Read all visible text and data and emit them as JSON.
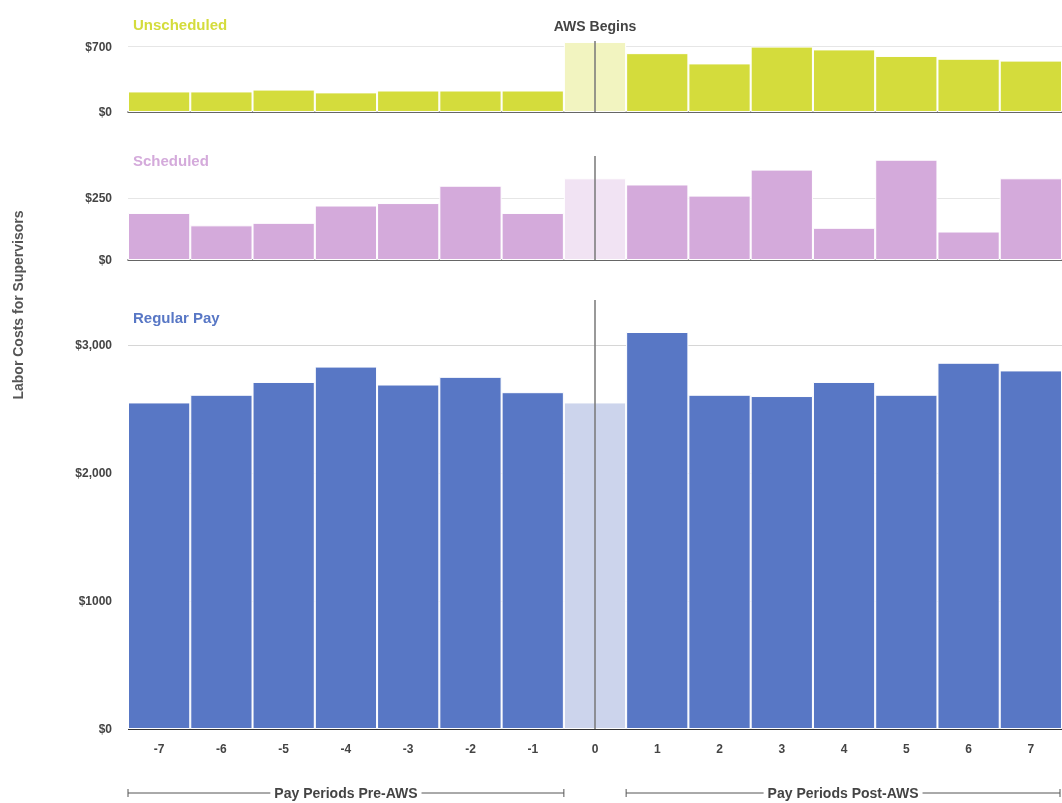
{
  "chart_data": [
    {
      "type": "bar",
      "title": "Unscheduled",
      "categories": [
        "-7",
        "-6",
        "-5",
        "-4",
        "-3",
        "-2",
        "-1",
        "0",
        "1",
        "2",
        "3",
        "4",
        "5",
        "6",
        "7"
      ],
      "values": [
        220,
        220,
        240,
        210,
        230,
        230,
        230,
        750,
        630,
        520,
        700,
        670,
        600,
        570,
        550
      ],
      "colors": [
        "#d4dc3c",
        "#d4dc3c",
        "#d4dc3c",
        "#d4dc3c",
        "#d4dc3c",
        "#d4dc3c",
        "#d4dc3c",
        "#f2f4c0",
        "#d4dc3c",
        "#d4dc3c",
        "#d4dc3c",
        "#d4dc3c",
        "#d4dc3c",
        "#d4dc3c",
        "#d4dc3c"
      ],
      "ylim": [
        0,
        760
      ],
      "yticks": [
        {
          "value": 0,
          "label": "$0"
        },
        {
          "value": 700,
          "label": "$700"
        }
      ],
      "tick_labels": "y",
      "ref_lines": [
        {
          "axis": "y",
          "value": 700,
          "color": "#e6e6e6"
        },
        {
          "axis": "x",
          "value": "0",
          "label": "AWS Begins",
          "color": "#777777"
        }
      ]
    },
    {
      "type": "bar",
      "title": "Scheduled",
      "ylabel": "Labor Costs for Supervisors",
      "categories": [
        "-7",
        "-6",
        "-5",
        "-4",
        "-3",
        "-2",
        "-1",
        "0",
        "1",
        "2",
        "3",
        "4",
        "5",
        "6",
        "7"
      ],
      "values": [
        190,
        140,
        150,
        220,
        230,
        300,
        190,
        330,
        305,
        260,
        365,
        130,
        405,
        115,
        330
      ],
      "colors": [
        "#d4aadb",
        "#d4aadb",
        "#d4aadb",
        "#d4aadb",
        "#d4aadb",
        "#d4aadb",
        "#d4aadb",
        "#f1e3f3",
        "#d4aadb",
        "#d4aadb",
        "#d4aadb",
        "#d4aadb",
        "#d4aadb",
        "#d4aadb",
        "#d4aadb"
      ],
      "ylim": [
        0,
        420
      ],
      "yticks": [
        {
          "value": 0,
          "label": "$0"
        },
        {
          "value": 250,
          "label": "$250"
        }
      ],
      "tick_labels": "y",
      "ref_lines": [
        {
          "axis": "y",
          "value": 250,
          "color": "#e6e6e6"
        },
        {
          "axis": "x",
          "value": "0",
          "color": "#777777"
        }
      ]
    },
    {
      "type": "bar",
      "title": "Regular Pay",
      "categories": [
        "-7",
        "-6",
        "-5",
        "-4",
        "-3",
        "-2",
        "-1",
        "0",
        "1",
        "2",
        "3",
        "4",
        "5",
        "6",
        "7"
      ],
      "values": [
        2550,
        2610,
        2710,
        2830,
        2690,
        2750,
        2630,
        2550,
        3100,
        2610,
        2600,
        2710,
        2610,
        2860,
        2800
      ],
      "colors": [
        "#5877c5",
        "#5877c5",
        "#5877c5",
        "#5877c5",
        "#5877c5",
        "#5877c5",
        "#5877c5",
        "#ccd4ec",
        "#5877c5",
        "#5877c5",
        "#5877c5",
        "#5877c5",
        "#5877c5",
        "#5877c5",
        "#5877c5"
      ],
      "ylim": [
        0,
        3350
      ],
      "yticks": [
        {
          "value": 0,
          "label": "$0"
        },
        {
          "value": 1000,
          "label": "$1000"
        },
        {
          "value": 2000,
          "label": "$2,000"
        },
        {
          "value": 3000,
          "label": "$3,000"
        }
      ],
      "grid": "y",
      "ref_lines": [
        {
          "axis": "x",
          "value": "0",
          "color": "#777777"
        }
      ],
      "annotations": [
        "Pay Periods Pre-AWS",
        "Pay Periods Post-AWS"
      ]
    }
  ]
}
